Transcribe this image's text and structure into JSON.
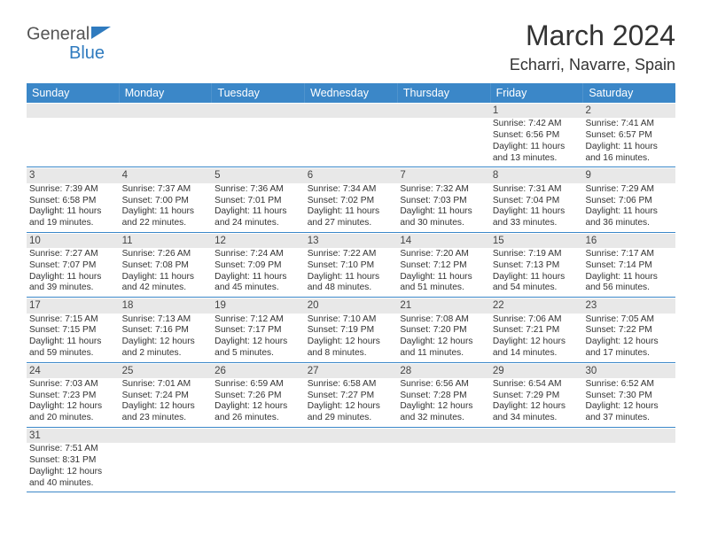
{
  "header": {
    "logo_text_1": "General",
    "logo_text_2": "Blue",
    "month_title": "March 2024",
    "location": "Echarri, Navarre, Spain"
  },
  "colors": {
    "header_bg": "#3b87c8",
    "header_fg": "#ffffff",
    "daynum_bg": "#e8e8e8",
    "row_border": "#3b87c8",
    "text": "#333333",
    "logo_gray": "#555555",
    "logo_blue": "#2f7bbf"
  },
  "weekdays": [
    "Sunday",
    "Monday",
    "Tuesday",
    "Wednesday",
    "Thursday",
    "Friday",
    "Saturday"
  ],
  "weeks": [
    [
      {
        "empty": true
      },
      {
        "empty": true
      },
      {
        "empty": true
      },
      {
        "empty": true
      },
      {
        "empty": true
      },
      {
        "day": "1",
        "sunrise": "Sunrise: 7:42 AM",
        "sunset": "Sunset: 6:56 PM",
        "daylight": "Daylight: 11 hours and 13 minutes."
      },
      {
        "day": "2",
        "sunrise": "Sunrise: 7:41 AM",
        "sunset": "Sunset: 6:57 PM",
        "daylight": "Daylight: 11 hours and 16 minutes."
      }
    ],
    [
      {
        "day": "3",
        "sunrise": "Sunrise: 7:39 AM",
        "sunset": "Sunset: 6:58 PM",
        "daylight": "Daylight: 11 hours and 19 minutes."
      },
      {
        "day": "4",
        "sunrise": "Sunrise: 7:37 AM",
        "sunset": "Sunset: 7:00 PM",
        "daylight": "Daylight: 11 hours and 22 minutes."
      },
      {
        "day": "5",
        "sunrise": "Sunrise: 7:36 AM",
        "sunset": "Sunset: 7:01 PM",
        "daylight": "Daylight: 11 hours and 24 minutes."
      },
      {
        "day": "6",
        "sunrise": "Sunrise: 7:34 AM",
        "sunset": "Sunset: 7:02 PM",
        "daylight": "Daylight: 11 hours and 27 minutes."
      },
      {
        "day": "7",
        "sunrise": "Sunrise: 7:32 AM",
        "sunset": "Sunset: 7:03 PM",
        "daylight": "Daylight: 11 hours and 30 minutes."
      },
      {
        "day": "8",
        "sunrise": "Sunrise: 7:31 AM",
        "sunset": "Sunset: 7:04 PM",
        "daylight": "Daylight: 11 hours and 33 minutes."
      },
      {
        "day": "9",
        "sunrise": "Sunrise: 7:29 AM",
        "sunset": "Sunset: 7:06 PM",
        "daylight": "Daylight: 11 hours and 36 minutes."
      }
    ],
    [
      {
        "day": "10",
        "sunrise": "Sunrise: 7:27 AM",
        "sunset": "Sunset: 7:07 PM",
        "daylight": "Daylight: 11 hours and 39 minutes."
      },
      {
        "day": "11",
        "sunrise": "Sunrise: 7:26 AM",
        "sunset": "Sunset: 7:08 PM",
        "daylight": "Daylight: 11 hours and 42 minutes."
      },
      {
        "day": "12",
        "sunrise": "Sunrise: 7:24 AM",
        "sunset": "Sunset: 7:09 PM",
        "daylight": "Daylight: 11 hours and 45 minutes."
      },
      {
        "day": "13",
        "sunrise": "Sunrise: 7:22 AM",
        "sunset": "Sunset: 7:10 PM",
        "daylight": "Daylight: 11 hours and 48 minutes."
      },
      {
        "day": "14",
        "sunrise": "Sunrise: 7:20 AM",
        "sunset": "Sunset: 7:12 PM",
        "daylight": "Daylight: 11 hours and 51 minutes."
      },
      {
        "day": "15",
        "sunrise": "Sunrise: 7:19 AM",
        "sunset": "Sunset: 7:13 PM",
        "daylight": "Daylight: 11 hours and 54 minutes."
      },
      {
        "day": "16",
        "sunrise": "Sunrise: 7:17 AM",
        "sunset": "Sunset: 7:14 PM",
        "daylight": "Daylight: 11 hours and 56 minutes."
      }
    ],
    [
      {
        "day": "17",
        "sunrise": "Sunrise: 7:15 AM",
        "sunset": "Sunset: 7:15 PM",
        "daylight": "Daylight: 11 hours and 59 minutes."
      },
      {
        "day": "18",
        "sunrise": "Sunrise: 7:13 AM",
        "sunset": "Sunset: 7:16 PM",
        "daylight": "Daylight: 12 hours and 2 minutes."
      },
      {
        "day": "19",
        "sunrise": "Sunrise: 7:12 AM",
        "sunset": "Sunset: 7:17 PM",
        "daylight": "Daylight: 12 hours and 5 minutes."
      },
      {
        "day": "20",
        "sunrise": "Sunrise: 7:10 AM",
        "sunset": "Sunset: 7:19 PM",
        "daylight": "Daylight: 12 hours and 8 minutes."
      },
      {
        "day": "21",
        "sunrise": "Sunrise: 7:08 AM",
        "sunset": "Sunset: 7:20 PM",
        "daylight": "Daylight: 12 hours and 11 minutes."
      },
      {
        "day": "22",
        "sunrise": "Sunrise: 7:06 AM",
        "sunset": "Sunset: 7:21 PM",
        "daylight": "Daylight: 12 hours and 14 minutes."
      },
      {
        "day": "23",
        "sunrise": "Sunrise: 7:05 AM",
        "sunset": "Sunset: 7:22 PM",
        "daylight": "Daylight: 12 hours and 17 minutes."
      }
    ],
    [
      {
        "day": "24",
        "sunrise": "Sunrise: 7:03 AM",
        "sunset": "Sunset: 7:23 PM",
        "daylight": "Daylight: 12 hours and 20 minutes."
      },
      {
        "day": "25",
        "sunrise": "Sunrise: 7:01 AM",
        "sunset": "Sunset: 7:24 PM",
        "daylight": "Daylight: 12 hours and 23 minutes."
      },
      {
        "day": "26",
        "sunrise": "Sunrise: 6:59 AM",
        "sunset": "Sunset: 7:26 PM",
        "daylight": "Daylight: 12 hours and 26 minutes."
      },
      {
        "day": "27",
        "sunrise": "Sunrise: 6:58 AM",
        "sunset": "Sunset: 7:27 PM",
        "daylight": "Daylight: 12 hours and 29 minutes."
      },
      {
        "day": "28",
        "sunrise": "Sunrise: 6:56 AM",
        "sunset": "Sunset: 7:28 PM",
        "daylight": "Daylight: 12 hours and 32 minutes."
      },
      {
        "day": "29",
        "sunrise": "Sunrise: 6:54 AM",
        "sunset": "Sunset: 7:29 PM",
        "daylight": "Daylight: 12 hours and 34 minutes."
      },
      {
        "day": "30",
        "sunrise": "Sunrise: 6:52 AM",
        "sunset": "Sunset: 7:30 PM",
        "daylight": "Daylight: 12 hours and 37 minutes."
      }
    ],
    [
      {
        "day": "31",
        "sunrise": "Sunrise: 7:51 AM",
        "sunset": "Sunset: 8:31 PM",
        "daylight": "Daylight: 12 hours and 40 minutes."
      },
      {
        "empty": true
      },
      {
        "empty": true
      },
      {
        "empty": true
      },
      {
        "empty": true
      },
      {
        "empty": true
      },
      {
        "empty": true
      }
    ]
  ]
}
